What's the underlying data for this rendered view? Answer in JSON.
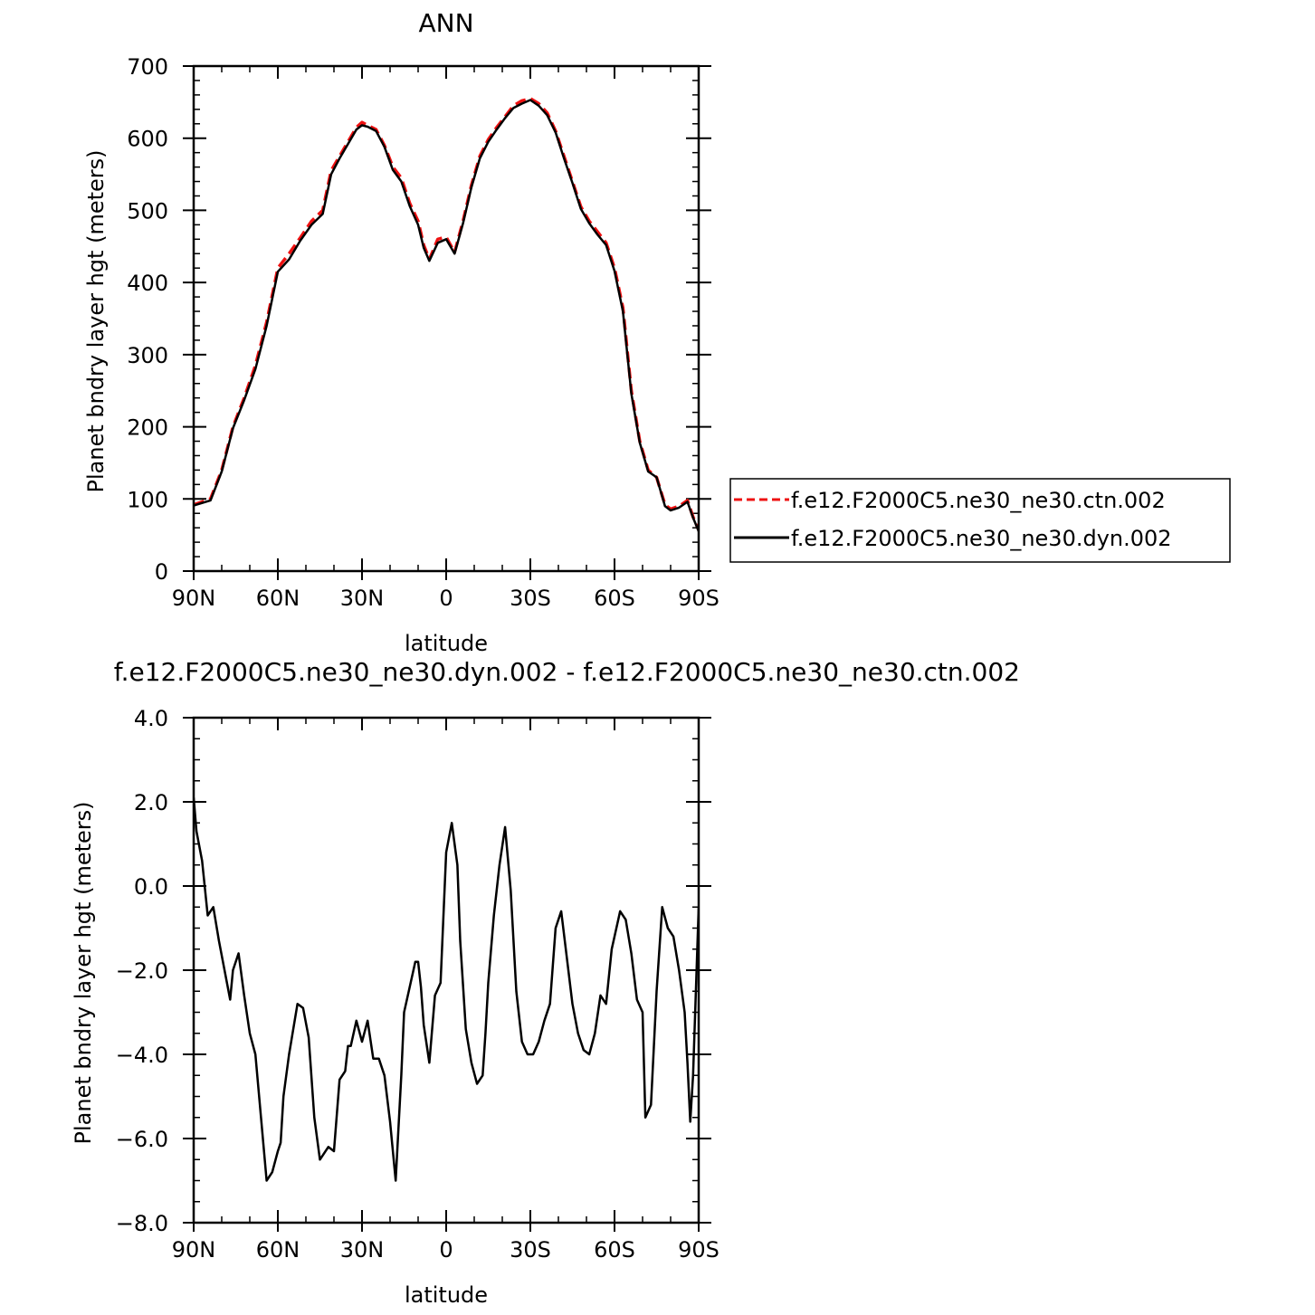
{
  "chart_data": [
    {
      "type": "line",
      "title": "ANN",
      "xlabel": "latitude",
      "ylabel": "Planet bndry layer hgt (meters)",
      "xlim": [
        90,
        -90
      ],
      "ylim": [
        0,
        700
      ],
      "x_ticks": [
        90,
        60,
        30,
        0,
        -30,
        -60,
        -90
      ],
      "x_tick_labels": [
        "90N",
        "60N",
        "30N",
        "0",
        "30S",
        "60S",
        "90S"
      ],
      "y_ticks": [
        0,
        100,
        200,
        300,
        400,
        500,
        600,
        700
      ],
      "y_tick_labels": [
        "0",
        "100",
        "200",
        "300",
        "400",
        "500",
        "600",
        "700"
      ],
      "legend_position": "right",
      "series": [
        {
          "name": "f.e12.F2000C5.ne30_ne30.ctn.002",
          "color": "#ee1111",
          "style": "dashed",
          "x": [
            90,
            84,
            80,
            76,
            72,
            68,
            64,
            60,
            56,
            52,
            48,
            44,
            41,
            38,
            35,
            32,
            30,
            28,
            25,
            22,
            19,
            16,
            13,
            10,
            8,
            6,
            3,
            0,
            -3,
            -6,
            -9,
            -12,
            -15,
            -18,
            -21,
            -24,
            -27,
            -30,
            -33,
            -36,
            -39,
            -42,
            -45,
            -48,
            -51,
            -54,
            -57,
            -60,
            -63,
            -66,
            -69,
            -72,
            -75,
            -78,
            -80,
            -83,
            -86,
            -88,
            -90
          ],
          "y": [
            92,
            100,
            140,
            200,
            240,
            285,
            345,
            420,
            440,
            462,
            485,
            500,
            555,
            575,
            595,
            615,
            622,
            618,
            612,
            590,
            560,
            545,
            510,
            485,
            452,
            432,
            460,
            463,
            442,
            485,
            535,
            575,
            598,
            615,
            630,
            645,
            652,
            655,
            648,
            635,
            610,
            575,
            540,
            505,
            485,
            470,
            455,
            420,
            365,
            250,
            180,
            140,
            130,
            92,
            86,
            90,
            98,
            75,
            57
          ]
        },
        {
          "name": "f.e12.F2000C5.ne30_ne30.dyn.002",
          "color": "#000000",
          "style": "solid",
          "x": [
            90,
            84,
            80,
            76,
            72,
            68,
            64,
            60,
            56,
            52,
            48,
            44,
            41,
            38,
            35,
            32,
            30,
            28,
            25,
            22,
            19,
            16,
            13,
            10,
            8,
            6,
            3,
            0,
            -3,
            -6,
            -9,
            -12,
            -15,
            -18,
            -21,
            -24,
            -27,
            -30,
            -33,
            -36,
            -39,
            -42,
            -45,
            -48,
            -51,
            -54,
            -57,
            -60,
            -63,
            -66,
            -69,
            -72,
            -75,
            -78,
            -80,
            -83,
            -86,
            -88,
            -90
          ],
          "y": [
            91,
            98,
            138,
            198,
            237,
            280,
            340,
            415,
            432,
            458,
            480,
            495,
            550,
            572,
            592,
            612,
            618,
            616,
            610,
            588,
            556,
            540,
            506,
            480,
            448,
            430,
            455,
            460,
            440,
            482,
            532,
            572,
            595,
            612,
            628,
            642,
            648,
            653,
            645,
            632,
            608,
            572,
            538,
            502,
            482,
            466,
            452,
            416,
            360,
            246,
            178,
            138,
            130,
            90,
            84,
            88,
            96,
            74,
            55
          ]
        }
      ]
    },
    {
      "type": "line",
      "title": "f.e12.F2000C5.ne30_ne30.dyn.002 - f.e12.F2000C5.ne30_ne30.ctn.002",
      "xlabel": "latitude",
      "ylabel": "Planet bndry layer hgt (meters)",
      "xlim": [
        90,
        -90
      ],
      "ylim": [
        -8,
        4
      ],
      "x_ticks": [
        90,
        60,
        30,
        0,
        -30,
        -60,
        -90
      ],
      "x_tick_labels": [
        "90N",
        "60N",
        "30N",
        "0",
        "30S",
        "60S",
        "90S"
      ],
      "y_ticks": [
        -8,
        -6,
        -4,
        -2,
        0,
        2,
        4
      ],
      "y_tick_labels": [
        "-8.0",
        "-6.0",
        "-4.0",
        "-2.0",
        "0.0",
        "2.0",
        "4.0"
      ],
      "series": [
        {
          "name": "",
          "color": "#000000",
          "style": "solid",
          "x": [
            90,
            89,
            87,
            85,
            83,
            81,
            79,
            77,
            76,
            74,
            72,
            70,
            68,
            66,
            64,
            62,
            60,
            59,
            58,
            56,
            55,
            53,
            51,
            49,
            47,
            45,
            42,
            40,
            38,
            36,
            35,
            34,
            32,
            30,
            28,
            26,
            24,
            22,
            20,
            18,
            16,
            15,
            13,
            11,
            10,
            9,
            8,
            6,
            4,
            2,
            0,
            -2,
            -4,
            -5,
            -7,
            -9,
            -11,
            -13,
            -14,
            -15,
            -17,
            -19,
            -21,
            -23,
            -25,
            -27,
            -29,
            -31,
            -33,
            -35,
            -37,
            -39,
            -41,
            -43,
            -45,
            -47,
            -49,
            -51,
            -53,
            -55,
            -57,
            -59,
            -61,
            -62,
            -64,
            -66,
            -68,
            -70,
            -71,
            -73,
            -75,
            -77,
            -79,
            -81,
            -83,
            -85,
            -86,
            -87,
            -88,
            -90
          ],
          "y": [
            2.1,
            1.3,
            0.6,
            -0.7,
            -0.5,
            -1.3,
            -2.0,
            -2.7,
            -2.0,
            -1.6,
            -2.6,
            -3.5,
            -4.0,
            -5.5,
            -7.0,
            -6.8,
            -6.3,
            -6.1,
            -5.0,
            -4.0,
            -3.6,
            -2.8,
            -2.9,
            -3.6,
            -5.5,
            -6.5,
            -6.2,
            -6.3,
            -4.6,
            -4.4,
            -3.8,
            -3.8,
            -3.2,
            -3.7,
            -3.2,
            -4.1,
            -4.1,
            -4.5,
            -5.6,
            -7.0,
            -4.5,
            -3.0,
            -2.4,
            -1.8,
            -1.8,
            -2.4,
            -3.3,
            -4.2,
            -2.6,
            -2.3,
            0.8,
            1.5,
            0.5,
            -1.3,
            -3.4,
            -4.2,
            -4.7,
            -4.5,
            -3.5,
            -2.3,
            -0.7,
            0.5,
            1.4,
            -0.1,
            -2.5,
            -3.7,
            -4.0,
            -4.0,
            -3.7,
            -3.2,
            -2.8,
            -1.0,
            -0.6,
            -1.7,
            -2.8,
            -3.5,
            -3.9,
            -4.0,
            -3.5,
            -2.6,
            -2.8,
            -1.5,
            -0.9,
            -0.6,
            -0.8,
            -1.6,
            -2.7,
            -3.0,
            -5.5,
            -5.2,
            -2.5,
            -0.5,
            -1.0,
            -1.2,
            -2.0,
            -3.0,
            -4.2,
            -5.6,
            -4.5,
            -0.5
          ]
        }
      ]
    }
  ]
}
